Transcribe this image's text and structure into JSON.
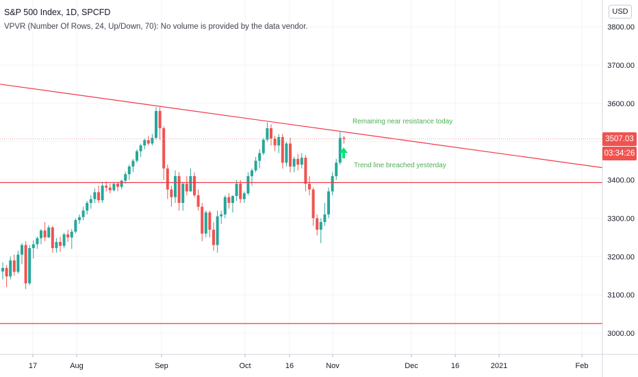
{
  "header": {
    "symbol": "S&P 500 Index, 1D, SPCFD",
    "indicator": "VPVR (Number Of Rows, 24, Up/Down, 70): No volume is provided by the data vendor.",
    "currency": "USD"
  },
  "price_labels": {
    "last_price": "3507.03",
    "countdown": "03:34:26"
  },
  "colors": {
    "up": "#26a69a",
    "down": "#ef5350",
    "annotation": "#4caf50",
    "line": "#f23645",
    "grid": "#f0f3fa"
  },
  "chart_data": {
    "type": "candlestick",
    "y_ticks": [
      "3800.00",
      "3700.00",
      "3600.00",
      "3500.00",
      "3400.00",
      "3300.00",
      "3200.00",
      "3100.00",
      "3000.00"
    ],
    "x_ticks": [
      "17",
      "Aug",
      "Sep",
      "Oct",
      "16",
      "Nov",
      "Dec",
      "16",
      "2021",
      "Feb"
    ],
    "ylim": [
      2945,
      3860
    ],
    "grid": true,
    "horizontal_lines": [
      3393,
      3025
    ],
    "trend_line": {
      "from": [
        "Jul 6",
        3650
      ],
      "to": [
        "Feb 15",
        3432
      ]
    },
    "annotations": [
      {
        "text": "Remaining near resistance today",
        "date": "Nov 5",
        "value": 3555
      },
      {
        "text": "Trend line breached yesterday",
        "date": "Nov 5",
        "value": 3440
      }
    ],
    "arrow": {
      "date": "Nov 4",
      "value": 3460,
      "direction": "up",
      "color": "#00e676"
    },
    "candles": [
      [
        3161,
        3185,
        3140,
        3170
      ],
      [
        3170,
        3178,
        3120,
        3148
      ],
      [
        3148,
        3200,
        3140,
        3190
      ],
      [
        3190,
        3205,
        3150,
        3160
      ],
      [
        3160,
        3215,
        3155,
        3205
      ],
      [
        3205,
        3235,
        3180,
        3230
      ],
      [
        3230,
        3240,
        3115,
        3130
      ],
      [
        3130,
        3230,
        3125,
        3222
      ],
      [
        3222,
        3242,
        3195,
        3232
      ],
      [
        3232,
        3252,
        3220,
        3248
      ],
      [
        3248,
        3272,
        3232,
        3268
      ],
      [
        3268,
        3290,
        3240,
        3250
      ],
      [
        3250,
        3282,
        3248,
        3276
      ],
      [
        3276,
        3280,
        3210,
        3222
      ],
      [
        3222,
        3248,
        3210,
        3238
      ],
      [
        3238,
        3252,
        3212,
        3228
      ],
      [
        3228,
        3262,
        3222,
        3258
      ],
      [
        3258,
        3270,
        3238,
        3250
      ],
      [
        3250,
        3272,
        3220,
        3265
      ],
      [
        3265,
        3300,
        3260,
        3295
      ],
      [
        3295,
        3310,
        3285,
        3303
      ],
      [
        3303,
        3330,
        3295,
        3320
      ],
      [
        3320,
        3345,
        3310,
        3340
      ],
      [
        3340,
        3360,
        3325,
        3350
      ],
      [
        3350,
        3378,
        3340,
        3368
      ],
      [
        3368,
        3385,
        3340,
        3347
      ],
      [
        3347,
        3395,
        3340,
        3385
      ],
      [
        3385,
        3396,
        3370,
        3380
      ],
      [
        3380,
        3390,
        3365,
        3373
      ],
      [
        3373,
        3395,
        3370,
        3390
      ],
      [
        3390,
        3395,
        3370,
        3382
      ],
      [
        3382,
        3400,
        3375,
        3398
      ],
      [
        3398,
        3422,
        3390,
        3415
      ],
      [
        3415,
        3440,
        3400,
        3435
      ],
      [
        3435,
        3455,
        3420,
        3450
      ],
      [
        3450,
        3480,
        3445,
        3475
      ],
      [
        3475,
        3495,
        3460,
        3490
      ],
      [
        3490,
        3508,
        3480,
        3504
      ],
      [
        3504,
        3515,
        3490,
        3495
      ],
      [
        3495,
        3520,
        3490,
        3510
      ],
      [
        3510,
        3590,
        3505,
        3580
      ],
      [
        3580,
        3590,
        3505,
        3535
      ],
      [
        3535,
        3540,
        3400,
        3430
      ],
      [
        3430,
        3440,
        3350,
        3375
      ],
      [
        3375,
        3385,
        3330,
        3355
      ],
      [
        3355,
        3425,
        3340,
        3410
      ],
      [
        3410,
        3420,
        3320,
        3340
      ],
      [
        3340,
        3395,
        3320,
        3390
      ],
      [
        3390,
        3410,
        3360,
        3370
      ],
      [
        3370,
        3430,
        3370,
        3410
      ],
      [
        3410,
        3420,
        3355,
        3360
      ],
      [
        3360,
        3375,
        3320,
        3330
      ],
      [
        3330,
        3340,
        3240,
        3260
      ],
      [
        3260,
        3320,
        3250,
        3315
      ],
      [
        3315,
        3320,
        3250,
        3270
      ],
      [
        3270,
        3290,
        3215,
        3230
      ],
      [
        3230,
        3320,
        3210,
        3305
      ],
      [
        3305,
        3320,
        3285,
        3310
      ],
      [
        3310,
        3360,
        3300,
        3355
      ],
      [
        3355,
        3365,
        3325,
        3340
      ],
      [
        3340,
        3360,
        3315,
        3358
      ],
      [
        3358,
        3400,
        3345,
        3390
      ],
      [
        3390,
        3400,
        3340,
        3350
      ],
      [
        3350,
        3370,
        3340,
        3365
      ],
      [
        3365,
        3420,
        3360,
        3410
      ],
      [
        3410,
        3430,
        3385,
        3425
      ],
      [
        3425,
        3460,
        3420,
        3450
      ],
      [
        3450,
        3480,
        3430,
        3470
      ],
      [
        3470,
        3510,
        3465,
        3505
      ],
      [
        3505,
        3550,
        3500,
        3535
      ],
      [
        3535,
        3545,
        3490,
        3508
      ],
      [
        3508,
        3515,
        3475,
        3490
      ],
      [
        3490,
        3520,
        3470,
        3512
      ],
      [
        3512,
        3520,
        3430,
        3445
      ],
      [
        3445,
        3500,
        3435,
        3495
      ],
      [
        3495,
        3510,
        3420,
        3435
      ],
      [
        3435,
        3460,
        3420,
        3455
      ],
      [
        3455,
        3468,
        3425,
        3440
      ],
      [
        3440,
        3470,
        3430,
        3458
      ],
      [
        3458,
        3465,
        3370,
        3390
      ],
      [
        3390,
        3410,
        3360,
        3375
      ],
      [
        3375,
        3380,
        3280,
        3300
      ],
      [
        3300,
        3310,
        3255,
        3270
      ],
      [
        3270,
        3300,
        3235,
        3290
      ],
      [
        3290,
        3340,
        3280,
        3310
      ],
      [
        3310,
        3380,
        3300,
        3370
      ],
      [
        3370,
        3420,
        3360,
        3410
      ],
      [
        3410,
        3455,
        3400,
        3445
      ],
      [
        3445,
        3525,
        3440,
        3510
      ],
      [
        3510,
        3515,
        3495,
        3507
      ]
    ]
  }
}
